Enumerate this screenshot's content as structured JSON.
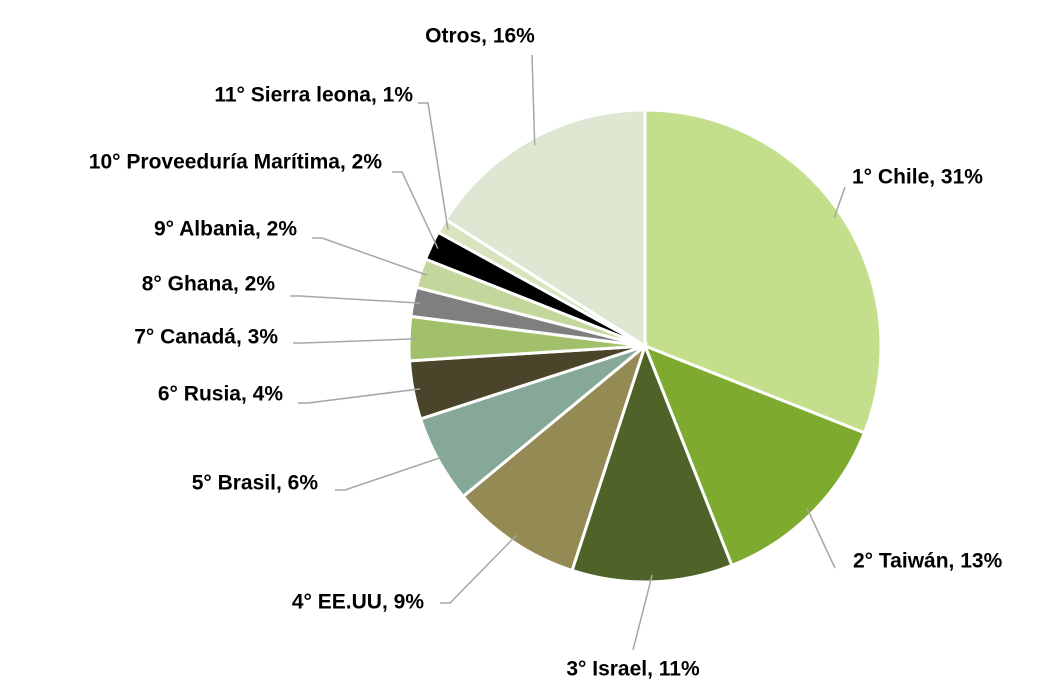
{
  "chart_data": {
    "type": "pie",
    "categories": [
      "1° Chile, 31%",
      "2° Taiwán, 13%",
      "3° Israel, 11%",
      "4° EE.UU, 9%",
      "5° Brasil, 6%",
      "6° Rusia, 4%",
      "7° Canadá, 3%",
      "8° Ghana, 2%",
      "9° Albania, 2%",
      "10° Proveeduría Marítima, 2%",
      "11° Sierra leona, 1%",
      "Otros, 16%"
    ],
    "values": [
      31,
      13,
      11,
      9,
      6,
      4,
      3,
      2,
      2,
      2,
      1,
      16
    ],
    "colors": [
      "#c4df8b",
      "#7eab2f",
      "#4f6228",
      "#948a54",
      "#86a896",
      "#4a442a",
      "#a2c06c",
      "#7f7f7f",
      "#c3d69b",
      "#000000",
      "#d7e4bd",
      "#dde7d1"
    ]
  }
}
